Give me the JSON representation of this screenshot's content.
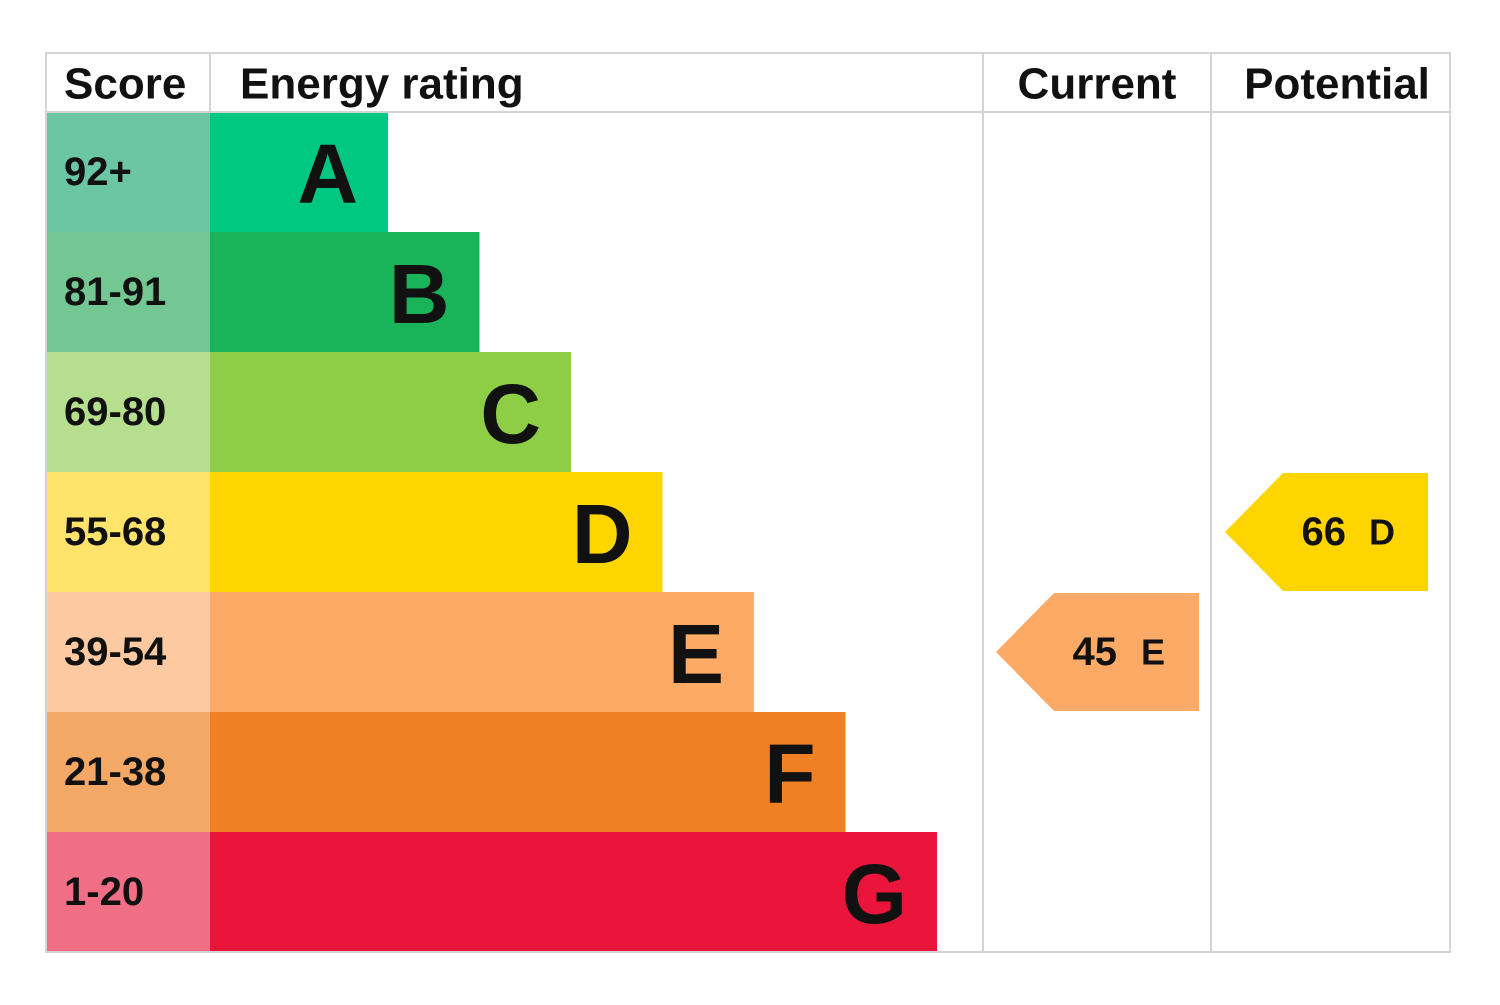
{
  "header": {
    "score": "Score",
    "rating": "Energy rating",
    "current": "Current",
    "potential": "Potential"
  },
  "rows": [
    {
      "score": "92+",
      "letter": "A",
      "bar_color": "#00c781",
      "score_color": "#6cc5a4"
    },
    {
      "score": "81-91",
      "letter": "B",
      "bar_color": "#19b459",
      "score_color": "#74c693"
    },
    {
      "score": "69-80",
      "letter": "C",
      "bar_color": "#8dce46",
      "score_color": "#b5de8e"
    },
    {
      "score": "55-68",
      "letter": "D",
      "bar_color": "#ffd500",
      "score_color": "#ffe36b"
    },
    {
      "score": "39-54",
      "letter": "E",
      "bar_color": "#fcaa65",
      "score_color": "#fdc9a0"
    },
    {
      "score": "21-38",
      "letter": "F",
      "bar_color": "#ef8023",
      "score_color": "#f3a865"
    },
    {
      "score": "1-20",
      "letter": "G",
      "bar_color": "#e9153b",
      "score_color": "#f06f86"
    }
  ],
  "current": {
    "score": "45",
    "letter": "E"
  },
  "potential": {
    "score": "66",
    "letter": "D"
  }
}
